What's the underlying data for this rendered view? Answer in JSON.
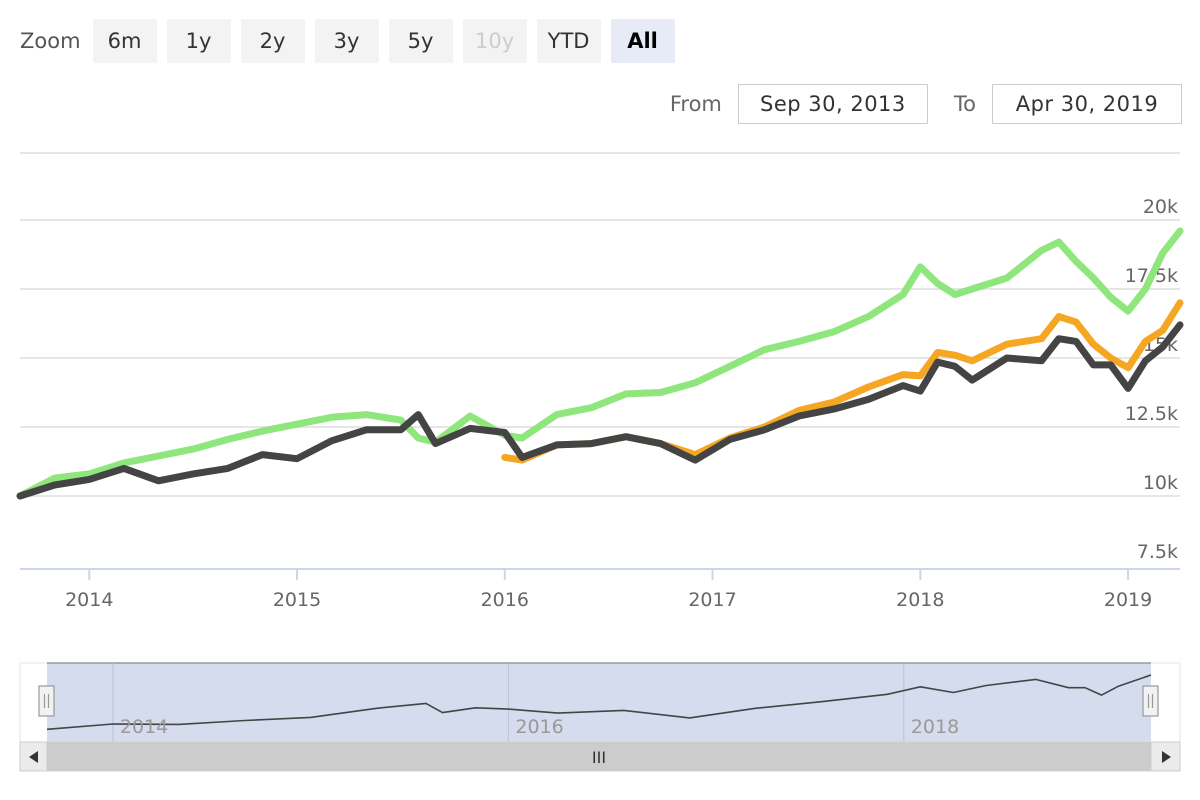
{
  "range_selector": {
    "zoom_label": "Zoom",
    "buttons": [
      {
        "label": "6m",
        "state": "normal"
      },
      {
        "label": "1y",
        "state": "normal"
      },
      {
        "label": "2y",
        "state": "normal"
      },
      {
        "label": "3y",
        "state": "normal"
      },
      {
        "label": "5y",
        "state": "normal"
      },
      {
        "label": "10y",
        "state": "disabled"
      },
      {
        "label": "YTD",
        "state": "normal"
      },
      {
        "label": "All",
        "state": "active"
      }
    ],
    "from_label": "From",
    "from_value": "Sep 30, 2013",
    "to_label": "To",
    "to_value": "Apr 30, 2019"
  },
  "navigator": {
    "tick_labels": [
      "2014",
      "2016",
      "2018"
    ],
    "scrollbar_grip": "III",
    "left_arrow_icon": "triangle-left",
    "right_arrow_icon": "triangle-right"
  },
  "chart_data": {
    "type": "line",
    "title": "",
    "xlabel": "",
    "ylabel": "",
    "x_start": "2013-09",
    "x_end": "2019-04",
    "x_ticks": [
      "2014",
      "2015",
      "2016",
      "2017",
      "2018",
      "2019"
    ],
    "y_ticks": [
      "7.5k",
      "10k",
      "12.5k",
      "15k",
      "17.5k",
      "20k"
    ],
    "ylim": [
      7500,
      20000
    ],
    "grid": true,
    "legend": "none",
    "colors": {
      "green": "#8ee67d",
      "orange": "#f5a623",
      "dark": "#444444",
      "navigator_fill": "#ccd6eb"
    },
    "series": [
      {
        "color": "#8ee67d",
        "x": [
          "2013-09",
          "2013-11",
          "2014-01",
          "2014-03",
          "2014-05",
          "2014-07",
          "2014-09",
          "2014-11",
          "2015-01",
          "2015-03",
          "2015-05",
          "2015-07",
          "2015-08",
          "2015-09",
          "2015-11",
          "2016-01",
          "2016-02",
          "2016-04",
          "2016-06",
          "2016-08",
          "2016-10",
          "2016-12",
          "2017-02",
          "2017-04",
          "2017-06",
          "2017-08",
          "2017-10",
          "2017-12",
          "2018-01",
          "2018-02",
          "2018-03",
          "2018-04",
          "2018-06",
          "2018-08",
          "2018-09",
          "2018-10",
          "2018-11",
          "2018-12",
          "2019-01",
          "2019-02",
          "2019-03",
          "2019-04"
        ],
        "values": [
          10000,
          10650,
          10800,
          11200,
          11450,
          11700,
          12050,
          12350,
          12600,
          12850,
          12950,
          12750,
          12100,
          11950,
          12900,
          12200,
          12100,
          12950,
          13200,
          13700,
          13750,
          14100,
          14700,
          15300,
          15600,
          15950,
          16500,
          17300,
          18300,
          17700,
          17300,
          17500,
          17900,
          18900,
          19200,
          18500,
          17900,
          17200,
          16700,
          17500,
          18800,
          19600
        ]
      },
      {
        "color": "#f5a623",
        "x": [
          "2016-01",
          "2016-02",
          "2016-04",
          "2016-06",
          "2016-08",
          "2016-10",
          "2016-12",
          "2017-02",
          "2017-04",
          "2017-06",
          "2017-08",
          "2017-10",
          "2017-12",
          "2018-01",
          "2018-02",
          "2018-03",
          "2018-04",
          "2018-06",
          "2018-08",
          "2018-09",
          "2018-10",
          "2018-11",
          "2018-12",
          "2019-01",
          "2019-02",
          "2019-03",
          "2019-04"
        ],
        "values": [
          11400,
          11300,
          11850,
          11900,
          12150,
          11900,
          11500,
          12100,
          12500,
          13100,
          13400,
          13950,
          14400,
          14350,
          15200,
          15100,
          14900,
          15500,
          15700,
          16500,
          16300,
          15500,
          15000,
          14650,
          15600,
          16000,
          17000
        ]
      },
      {
        "color": "#444444",
        "x": [
          "2013-09",
          "2013-11",
          "2014-01",
          "2014-03",
          "2014-05",
          "2014-07",
          "2014-09",
          "2014-11",
          "2015-01",
          "2015-03",
          "2015-05",
          "2015-07",
          "2015-08",
          "2015-09",
          "2015-11",
          "2016-01",
          "2016-02",
          "2016-04",
          "2016-06",
          "2016-08",
          "2016-10",
          "2016-12",
          "2017-02",
          "2017-04",
          "2017-06",
          "2017-08",
          "2017-10",
          "2017-12",
          "2018-01",
          "2018-02",
          "2018-03",
          "2018-04",
          "2018-06",
          "2018-08",
          "2018-09",
          "2018-10",
          "2018-11",
          "2018-12",
          "2019-01",
          "2019-02",
          "2019-03",
          "2019-04"
        ],
        "values": [
          10000,
          10400,
          10600,
          11000,
          10550,
          10800,
          11000,
          11500,
          11350,
          12000,
          12400,
          12400,
          12950,
          11900,
          12450,
          12300,
          11400,
          11850,
          11900,
          12150,
          11900,
          11300,
          12050,
          12400,
          12900,
          13150,
          13500,
          14000,
          13800,
          14850,
          14700,
          14200,
          15000,
          14900,
          15700,
          15600,
          14750,
          14750,
          13900,
          14900,
          15400,
          16200
        ]
      }
    ],
    "navigator_series": {
      "x": [
        "2013-09",
        "2014-01",
        "2014-05",
        "2014-09",
        "2015-01",
        "2015-05",
        "2015-08",
        "2015-09",
        "2015-11",
        "2016-01",
        "2016-04",
        "2016-08",
        "2016-12",
        "2017-04",
        "2017-08",
        "2017-12",
        "2018-02",
        "2018-04",
        "2018-06",
        "2018-09",
        "2018-11",
        "2018-12",
        "2019-01",
        "2019-02",
        "2019-04"
      ],
      "values": [
        10000,
        10600,
        10550,
        11000,
        11350,
        12400,
        12950,
        11900,
        12450,
        12300,
        11850,
        12150,
        11300,
        12400,
        13150,
        14000,
        14850,
        14200,
        15000,
        15700,
        14750,
        14750,
        13900,
        14900,
        16200
      ]
    }
  }
}
